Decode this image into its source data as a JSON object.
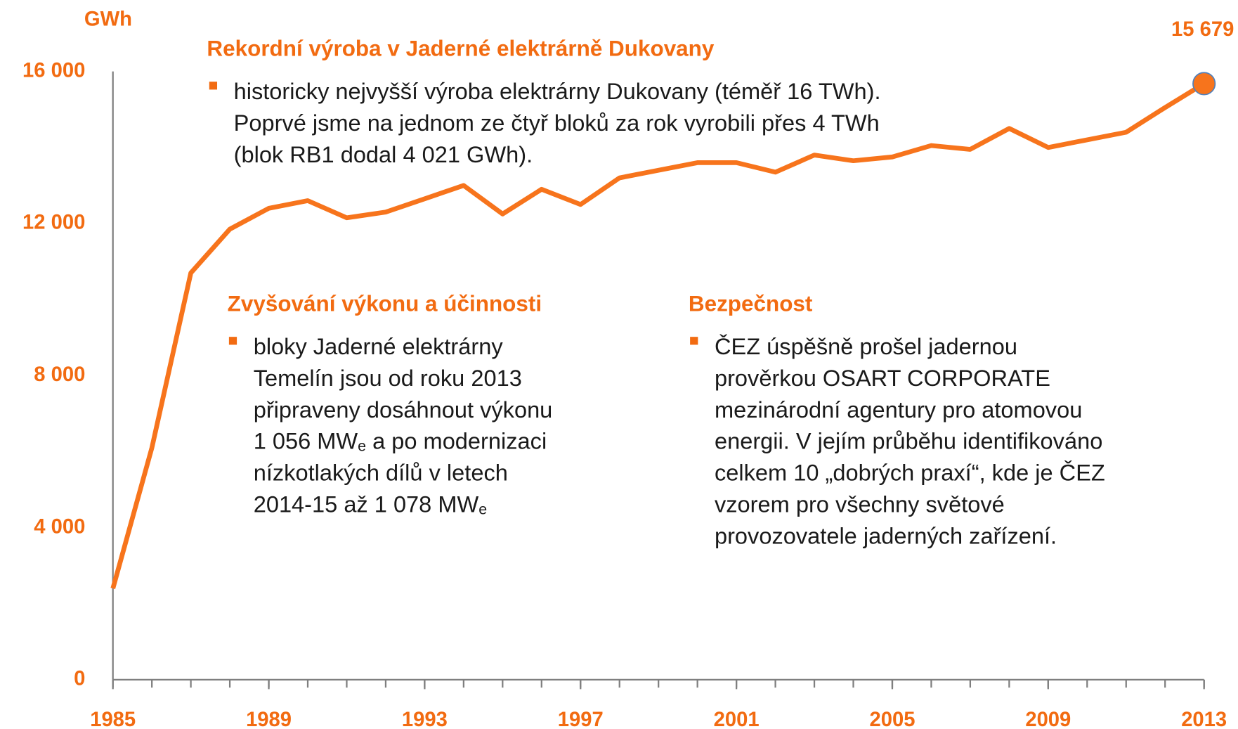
{
  "chart_data": {
    "type": "line",
    "y_label": "GWh",
    "x": [
      1985,
      1986,
      1987,
      1988,
      1989,
      1990,
      1991,
      1992,
      1993,
      1994,
      1995,
      1996,
      1997,
      1998,
      1999,
      2000,
      2001,
      2002,
      2003,
      2004,
      2005,
      2006,
      2007,
      2008,
      2009,
      2010,
      2011,
      2012,
      2013
    ],
    "series": [
      {
        "name": "Výroba",
        "color": "#f7741c",
        "values": [
          2400,
          6100,
          10700,
          11850,
          12400,
          12600,
          12150,
          12300,
          12650,
          13000,
          12250,
          12900,
          12500,
          13200,
          13400,
          13600,
          13600,
          13350,
          13800,
          13650,
          13750,
          14050,
          13950,
          14500,
          14000,
          14200,
          14400,
          15050,
          15679
        ],
        "value_labels": [
          null,
          null,
          null,
          null,
          null,
          null,
          null,
          null,
          null,
          null,
          null,
          null,
          null,
          null,
          null,
          null,
          null,
          null,
          null,
          null,
          null,
          null,
          null,
          null,
          null,
          null,
          null,
          null,
          "15 679"
        ]
      }
    ],
    "xlim": [
      1985,
      2013
    ],
    "xticks": [
      1985,
      1989,
      1993,
      1997,
      2001,
      2005,
      2009,
      2013
    ],
    "ylim": [
      0,
      16000
    ],
    "yticks": [
      0,
      {
        "value": 4000,
        "label": "4 000"
      },
      {
        "value": 8000,
        "label": "8 000"
      },
      {
        "value": 12000,
        "label": "12 000"
      },
      {
        "value": 16000,
        "label": "16 000"
      }
    ],
    "annotations": [
      {
        "title": "Rekordní výroba v Jaderné elektrárně Dukovany",
        "lines": [
          [
            "historicky nejvyšší výroba elektrárny Dukovany (téměř 16 TWh)."
          ],
          [
            "Poprvé jsme na jednom ze čtyř bloků za rok vyrobili přes 4 TWh"
          ],
          [
            "(blok RB1 dodal 4 021 GWh)."
          ]
        ]
      },
      {
        "title": "Zvyšování výkonu a účinnosti",
        "lines": [
          [
            "bloky Jaderné elektrárny"
          ],
          [
            "Temelín jsou od roku 2013"
          ],
          [
            "připraveny dosáhnout výkonu"
          ],
          [
            "1 056 MW",
            "e",
            " a po modernizaci"
          ],
          [
            "nízkotlakých dílů v letech"
          ],
          [
            "2014-15 až 1 078 MW",
            "e"
          ]
        ]
      },
      {
        "title": "Bezpečnost",
        "lines": [
          [
            "ČEZ úspěšně prošel jadernou"
          ],
          [
            "prověrkou OSART CORPORATE"
          ],
          [
            "mezinárodní agentury pro atomovou"
          ],
          [
            "energii. V jejím průběhu identifikováno"
          ],
          [
            "celkem 10 „dobrých praxí“, kde je ČEZ"
          ],
          [
            "vzorem pro všechny světové"
          ],
          [
            "provozovatele jaderných zařízení."
          ]
        ]
      }
    ]
  }
}
